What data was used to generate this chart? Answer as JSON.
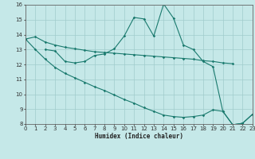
{
  "xlabel": "Humidex (Indice chaleur)",
  "bg_color": "#c5e8e8",
  "grid_color": "#a0cccc",
  "line_color": "#1a7a6e",
  "xmin": 0,
  "xmax": 23,
  "ymin": 8,
  "ymax": 16,
  "ytick_max": 16,
  "upper_x": [
    0,
    1,
    2,
    3,
    4,
    5,
    6,
    7,
    8,
    9,
    10,
    11,
    12,
    13,
    14,
    15,
    16,
    17,
    18,
    19,
    20,
    21
  ],
  "upper_y": [
    13.7,
    13.85,
    13.5,
    13.3,
    13.15,
    13.05,
    12.95,
    12.85,
    12.8,
    12.75,
    12.7,
    12.65,
    12.6,
    12.55,
    12.5,
    12.45,
    12.4,
    12.35,
    12.25,
    12.2,
    12.1,
    12.05
  ],
  "peak_x": [
    2,
    3,
    4,
    5,
    6,
    7,
    8,
    9,
    10,
    11,
    12,
    13,
    14,
    15,
    16,
    17,
    18,
    19,
    20,
    21,
    22,
    23
  ],
  "peak_y": [
    13.0,
    12.9,
    12.2,
    12.1,
    12.2,
    12.6,
    12.7,
    13.05,
    13.9,
    15.15,
    15.05,
    13.9,
    16.05,
    15.1,
    13.3,
    13.0,
    12.2,
    11.85,
    8.85,
    7.95,
    8.05,
    8.65
  ],
  "lower_x": [
    0,
    1,
    2,
    3,
    4,
    5,
    6,
    7,
    8,
    9,
    10,
    11,
    12,
    13,
    14,
    15,
    16,
    17,
    18,
    19,
    20,
    21,
    22,
    23
  ],
  "lower_y": [
    13.7,
    13.0,
    12.35,
    11.8,
    11.4,
    11.1,
    10.8,
    10.5,
    10.25,
    9.95,
    9.65,
    9.4,
    9.1,
    8.85,
    8.6,
    8.5,
    8.45,
    8.5,
    8.6,
    8.95,
    8.85,
    7.95,
    8.05,
    8.65
  ]
}
